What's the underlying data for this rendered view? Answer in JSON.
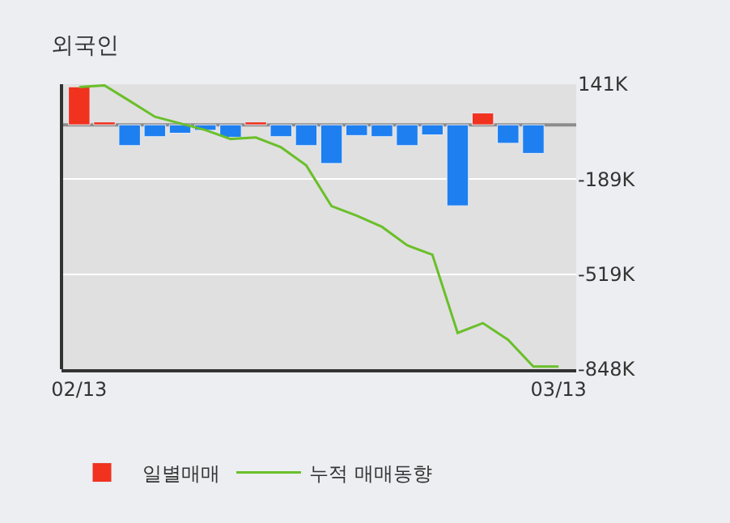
{
  "chart_data": {
    "type": "bar",
    "title": "외국인",
    "categories": [
      "02/13",
      null,
      null,
      null,
      null,
      null,
      null,
      null,
      null,
      null,
      null,
      null,
      null,
      null,
      null,
      null,
      null,
      null,
      null,
      "03/13"
    ],
    "series": [
      {
        "name": "일별매매",
        "colors": [
          "#f0321e",
          "#f0321e",
          "#1e7ff0",
          "#1e7ff0",
          "#1e7ff0",
          "#1e7ff0",
          "#1e7ff0",
          "#f0321e",
          "#1e7ff0",
          "#1e7ff0",
          "#1e7ff0",
          "#1e7ff0",
          "#1e7ff0",
          "#1e7ff0",
          "#1e7ff0",
          "#1e7ff0",
          "#f0321e",
          "#1e7ff0",
          "#1e7ff0",
          null
        ],
        "values": [
          132,
          10,
          -72,
          -41,
          -29,
          -19,
          -43,
          10,
          -41,
          -72,
          -134,
          -37,
          -41,
          -72,
          -35,
          -281,
          41,
          -64,
          -99,
          null
        ]
      },
      {
        "name": "누적 매매동향",
        "type": "line",
        "color": "#6abf2a",
        "values": [
          131,
          137,
          83,
          28,
          5,
          -18,
          -49,
          -44,
          -78,
          -141,
          -282,
          -315,
          -354,
          -418,
          -451,
          -722,
          -688,
          -746,
          -839,
          -839
        ]
      }
    ],
    "ylim": [
      -848,
      141
    ],
    "yticks": [
      {
        "value": 141,
        "label": "141K"
      },
      {
        "value": -189,
        "label": "-189K"
      },
      {
        "value": -519,
        "label": "-519K"
      },
      {
        "value": -848,
        "label": "-848K"
      }
    ],
    "ref_lines": [
      {
        "axis": "y",
        "value": 0,
        "color": "#8c8c8c"
      }
    ],
    "grid": "y",
    "legend": "bottom"
  }
}
